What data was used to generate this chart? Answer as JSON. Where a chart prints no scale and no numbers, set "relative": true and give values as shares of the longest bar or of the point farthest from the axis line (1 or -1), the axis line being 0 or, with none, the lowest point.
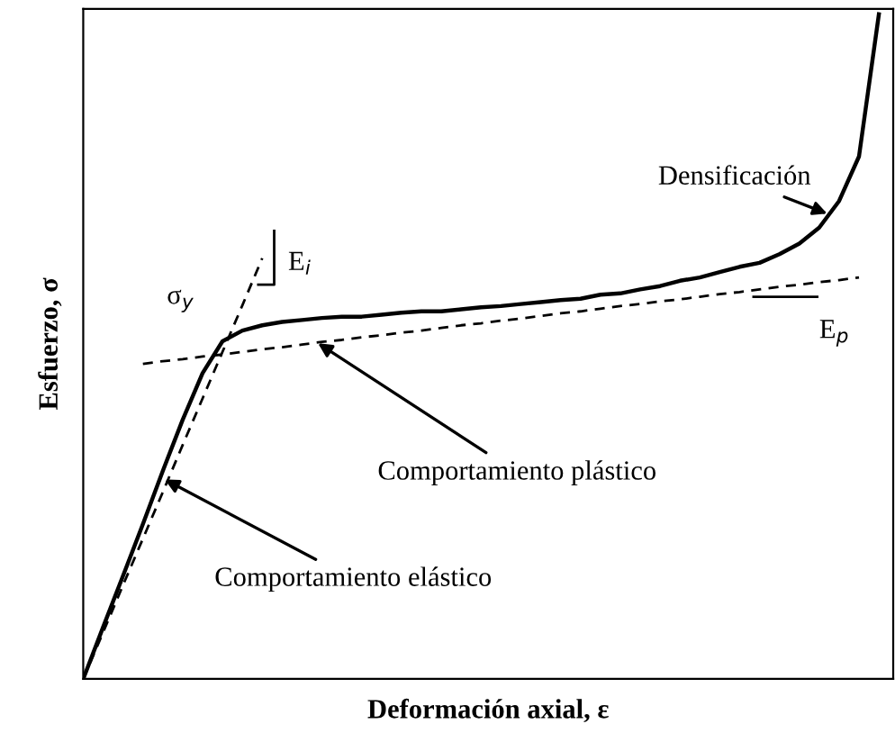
{
  "chart_data": {
    "type": "line",
    "relative": true,
    "xlabel": "Deformación axial, ε",
    "ylabel": "Esfuerzo, σ",
    "categories": [
      null,
      null,
      null,
      null,
      null,
      null,
      null,
      null,
      null,
      null,
      null,
      null,
      null,
      null,
      null,
      null,
      null,
      null,
      null,
      null,
      null,
      null,
      null,
      null,
      null,
      null,
      null,
      null,
      null,
      null,
      null,
      null,
      null,
      null,
      null,
      null,
      null,
      null,
      null,
      null,
      null
    ],
    "series": [
      {
        "color": "#000000",
        "line_style": "solid",
        "values": [
          0,
          0.078,
          0.155,
          0.233,
          0.313,
          0.39,
          0.46,
          0.508,
          0.524,
          0.532,
          0.537,
          0.54,
          0.543,
          0.545,
          0.545,
          0.548,
          0.551,
          0.553,
          0.553,
          0.556,
          0.559,
          0.561,
          0.564,
          0.567,
          0.57,
          0.572,
          0.578,
          0.58,
          0.586,
          0.591,
          0.599,
          0.604,
          0.612,
          0.62,
          0.626,
          0.639,
          0.655,
          0.679,
          0.719,
          0.786,
          1.0
        ]
      },
      {
        "color": "#000000",
        "line_style": "dashed",
        "values": [
          0,
          0.07,
          0.141,
          0.211,
          0.281,
          0.352,
          0.422,
          0.492,
          0.562,
          0.633,
          null,
          null,
          null,
          null,
          null,
          null,
          null,
          null,
          null,
          null,
          null,
          null,
          null,
          null,
          null,
          null,
          null,
          null,
          null,
          null,
          null,
          null,
          null,
          null,
          null,
          null,
          null,
          null,
          null,
          null,
          null
        ]
      },
      {
        "color": "#000000",
        "line_style": "dashed",
        "values": [
          null,
          null,
          null,
          0.474,
          0.478,
          0.481,
          0.485,
          0.488,
          0.492,
          0.496,
          0.499,
          0.503,
          0.507,
          0.51,
          0.514,
          0.517,
          0.521,
          0.524,
          0.528,
          0.532,
          0.535,
          0.539,
          0.542,
          0.546,
          0.55,
          0.553,
          0.557,
          0.561,
          0.564,
          0.568,
          0.571,
          0.575,
          0.579,
          0.582,
          0.586,
          0.59,
          0.593,
          0.597,
          0.6,
          0.604,
          null
        ]
      }
    ],
    "annotations": [
      "Densificación",
      "σ$_{y}$",
      "E$_{i}$",
      "E$_{p}$",
      "Comportamiento plástico",
      "Comportamiento elástico"
    ],
    "marker": "none"
  }
}
